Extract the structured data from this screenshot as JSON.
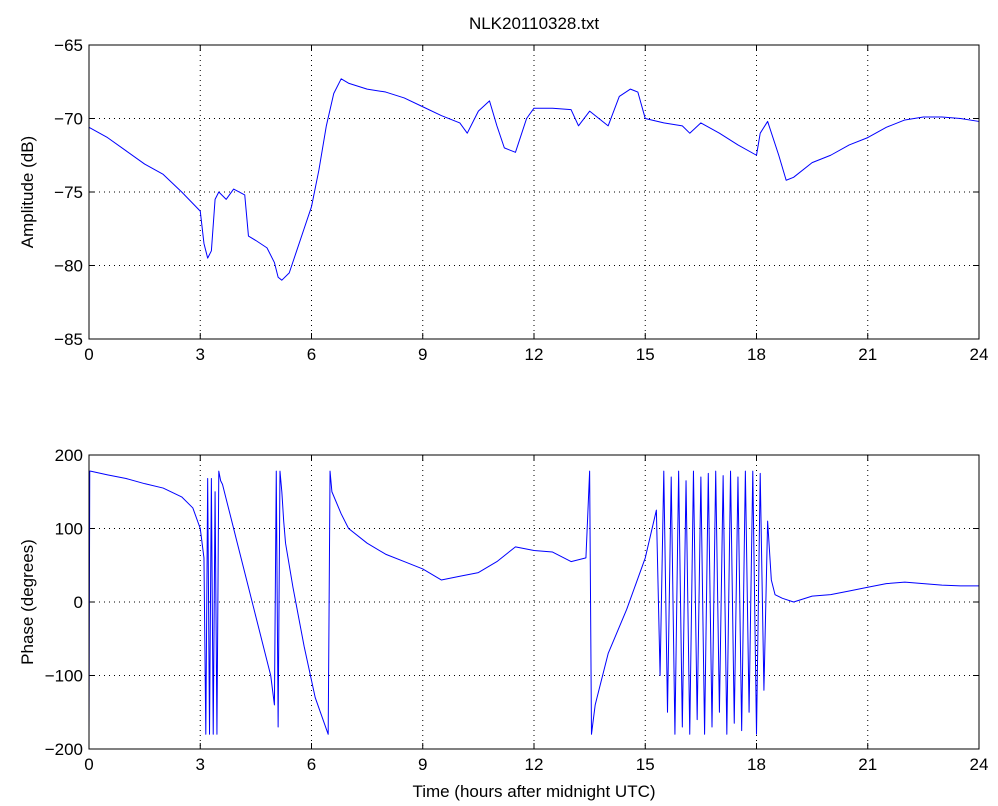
{
  "colors": {
    "series": "#0000ff",
    "axes": "#000000",
    "background": "#ffffff"
  },
  "chart_data": [
    {
      "type": "line",
      "title": "NLK20110328.txt",
      "xlabel": "",
      "ylabel": "Amplitude (dB)",
      "xlim": [
        0,
        24
      ],
      "ylim": [
        -85,
        -65
      ],
      "xticks": [
        0,
        3,
        6,
        9,
        12,
        15,
        18,
        21,
        24
      ],
      "yticks": [
        -85,
        -80,
        -75,
        -70,
        -65
      ],
      "xtick_labels": [
        "0",
        "3",
        "6",
        "9",
        "12",
        "15",
        "18",
        "21",
        "24"
      ],
      "ytick_labels": [
        "−85",
        "−80",
        "−75",
        "−70",
        "−65"
      ],
      "grid": true,
      "series": [
        {
          "x": [
            0,
            0.5,
            1,
            1.5,
            2,
            2.5,
            3,
            3.1,
            3.2,
            3.3,
            3.4,
            3.5,
            3.7,
            3.9,
            4.2,
            4.3,
            4.5,
            4.8,
            5.0,
            5.1,
            5.2,
            5.4,
            5.6,
            5.8,
            6.0,
            6.2,
            6.4,
            6.6,
            6.8,
            7.0,
            7.5,
            8.0,
            8.5,
            9.0,
            9.5,
            10.0,
            10.2,
            10.5,
            10.8,
            11.0,
            11.2,
            11.5,
            11.8,
            12.0,
            12.5,
            13.0,
            13.2,
            13.5,
            14.0,
            14.3,
            14.6,
            14.8,
            15.0,
            15.5,
            16.0,
            16.2,
            16.5,
            17.0,
            17.5,
            18.0,
            18.1,
            18.3,
            18.6,
            18.8,
            19.0,
            19.5,
            20.0,
            20.5,
            21.0,
            21.5,
            22.0,
            22.5,
            23.0,
            23.5,
            24.0
          ],
          "y": [
            -70.6,
            -71.3,
            -72.2,
            -73.1,
            -73.8,
            -75.0,
            -76.3,
            -78.5,
            -79.5,
            -79.0,
            -75.5,
            -75.0,
            -75.5,
            -74.8,
            -75.2,
            -78.0,
            -78.3,
            -78.8,
            -79.8,
            -80.8,
            -81.0,
            -80.5,
            -79.0,
            -77.5,
            -76.0,
            -73.5,
            -70.5,
            -68.3,
            -67.3,
            -67.6,
            -68.0,
            -68.2,
            -68.6,
            -69.2,
            -69.8,
            -70.3,
            -71.0,
            -69.5,
            -68.8,
            -70.5,
            -72.0,
            -72.3,
            -70.0,
            -69.3,
            -69.3,
            -69.4,
            -70.5,
            -69.5,
            -70.5,
            -68.5,
            -68.0,
            -68.2,
            -70.0,
            -70.3,
            -70.5,
            -71.0,
            -70.3,
            -71.0,
            -71.8,
            -72.5,
            -71.0,
            -70.2,
            -72.5,
            -74.2,
            -74.0,
            -73.0,
            -72.5,
            -71.8,
            -71.3,
            -70.6,
            -70.1,
            -69.9,
            -69.9,
            -70.0,
            -70.2
          ]
        }
      ]
    },
    {
      "type": "line",
      "title": "",
      "xlabel": "Time (hours after midnight UTC)",
      "ylabel": "Phase (degrees)",
      "xlim": [
        0,
        24
      ],
      "ylim": [
        -200,
        200
      ],
      "xticks": [
        0,
        3,
        6,
        9,
        12,
        15,
        18,
        21,
        24
      ],
      "yticks": [
        -200,
        -100,
        0,
        100,
        200
      ],
      "xtick_labels": [
        "0",
        "3",
        "6",
        "9",
        "12",
        "15",
        "18",
        "21",
        "24"
      ],
      "ytick_labels": [
        "−200",
        "−100",
        "0",
        "100",
        "200"
      ],
      "grid": true,
      "series": [
        {
          "x": [
            0,
            0.02,
            0.04,
            0.5,
            1.0,
            1.5,
            2.0,
            2.5,
            2.8,
            3.0,
            3.1,
            3.15,
            3.2,
            3.25,
            3.3,
            3.35,
            3.4,
            3.45,
            3.5,
            3.55,
            3.6,
            3.7,
            3.8,
            4.0,
            4.3,
            4.6,
            4.9,
            5.0,
            5.05,
            5.1,
            5.15,
            5.2,
            5.25,
            5.3,
            5.5,
            5.8,
            6.1,
            6.45,
            6.5,
            6.55,
            6.8,
            7.0,
            7.5,
            8.0,
            8.5,
            9.0,
            9.5,
            10.0,
            10.5,
            11.0,
            11.5,
            12.0,
            12.5,
            13.0,
            13.4,
            13.5,
            13.55,
            13.6,
            13.65,
            13.7,
            14.0,
            14.5,
            15.0,
            15.3,
            15.4,
            15.5,
            15.6,
            15.7,
            15.8,
            15.9,
            16.0,
            16.1,
            16.2,
            16.3,
            16.4,
            16.5,
            16.6,
            16.7,
            16.8,
            16.9,
            17.0,
            17.1,
            17.2,
            17.3,
            17.4,
            17.5,
            17.6,
            17.7,
            17.8,
            17.9,
            18.0,
            18.1,
            18.2,
            18.3,
            18.4,
            18.5,
            18.7,
            19.0,
            19.5,
            20.0,
            20.5,
            21.0,
            21.5,
            22.0,
            22.5,
            23.0,
            23.5,
            24.0
          ],
          "y": [
            -180,
            178,
            178,
            173,
            168,
            161,
            155,
            143,
            128,
            100,
            60,
            -180,
            168,
            -180,
            168,
            -180,
            150,
            -180,
            178,
            165,
            160,
            140,
            120,
            80,
            20,
            -40,
            -100,
            -140,
            178,
            -170,
            178,
            150,
            110,
            80,
            20,
            -60,
            -130,
            -180,
            178,
            150,
            120,
            100,
            80,
            65,
            55,
            45,
            30,
            35,
            40,
            55,
            75,
            70,
            68,
            55,
            60,
            178,
            -180,
            -160,
            -140,
            -130,
            -70,
            -10,
            60,
            125,
            -100,
            178,
            -150,
            170,
            -180,
            178,
            -170,
            165,
            -180,
            178,
            -160,
            170,
            -180,
            175,
            -170,
            178,
            -150,
            172,
            -180,
            178,
            -165,
            170,
            -175,
            178,
            -150,
            178,
            -180,
            175,
            -120,
            110,
            30,
            10,
            5,
            0,
            8,
            10,
            15,
            20,
            25,
            27,
            25,
            23,
            22,
            22
          ]
        }
      ]
    }
  ]
}
